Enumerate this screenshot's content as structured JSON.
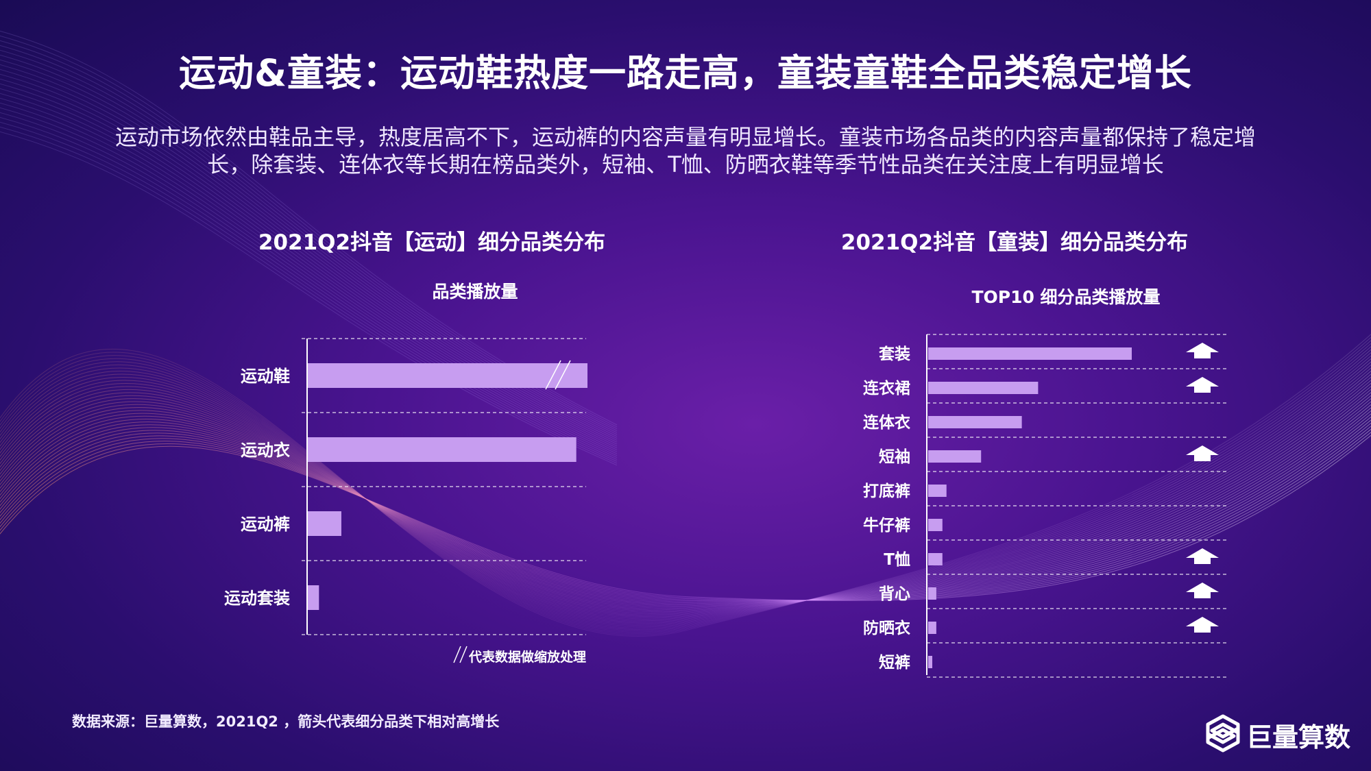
{
  "header": {
    "title": "运动&童装：运动鞋热度一路走高，童装童鞋全品类稳定增长",
    "subtitle_line1": "运动市场依然由鞋品主导，热度居高不下，运动裤的内容声量有明显增长。童装市场各品类的内容声量都保持了稳定增",
    "subtitle_line2": "长，除套装、连体衣等长期在榜品类外，短袖、T恤、防晒衣鞋等季节性品类在关注度上有明显增长"
  },
  "chart_data": [
    {
      "type": "bar",
      "orientation": "horizontal",
      "title": "2021Q2抖音【运动】细分品类分布",
      "subtitle": "品类播放量",
      "categories": [
        "运动鞋",
        "运动衣",
        "运动裤",
        "运动套装"
      ],
      "values": [
        100,
        96,
        12,
        4
      ],
      "scale_break_category": "运动鞋",
      "note": "代表数据做缩放处理",
      "xlabel": "",
      "ylabel": ""
    },
    {
      "type": "bar",
      "orientation": "horizontal",
      "title": "2021Q2抖音【童装】细分品类分布",
      "subtitle": "TOP10 细分品类播放量",
      "categories": [
        "套装",
        "连衣裙",
        "连体衣",
        "短袖",
        "打底裤",
        "牛仔裤",
        "T恤",
        "背心",
        "防晒衣",
        "短裤"
      ],
      "values": [
        100,
        54,
        46,
        26,
        9,
        7,
        7,
        4,
        4,
        2
      ],
      "high_growth": [
        true,
        true,
        false,
        true,
        false,
        false,
        true,
        true,
        true,
        false
      ],
      "xlabel": "",
      "ylabel": ""
    }
  ],
  "footer": {
    "source": "数据来源：巨量算数，2021Q2 ，箭头代表细分品类下相对高增长",
    "logo_text": "巨量算数"
  },
  "colors": {
    "bar": "#c79df0",
    "arrow": "#ffffff",
    "grid": "#ffffff"
  }
}
